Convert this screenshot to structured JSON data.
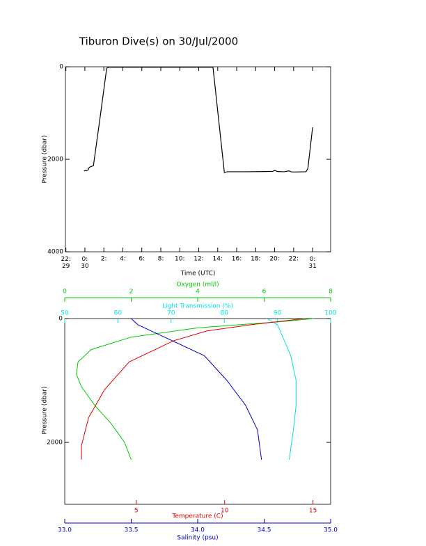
{
  "chart_data": [
    {
      "type": "line",
      "title": "Tiburon Dive(s) on 30/Jul/2000",
      "xlabel": "Time (UTC)",
      "ylabel": "Pressure (dbar)",
      "x": [
        -0.1,
        0.3,
        0.45,
        0.6,
        0.9,
        1.6,
        2.3,
        2.5,
        6,
        10,
        13.5,
        14.7,
        15,
        17,
        19,
        19.8,
        20,
        20.3,
        21,
        21.5,
        21.7,
        22,
        23.3,
        23.5,
        24.0
      ],
      "series": [
        {
          "color": "#000000",
          "values": [
            2250,
            2240,
            2180,
            2160,
            2140,
            1100,
            30,
            10,
            10,
            10,
            10,
            2285,
            2270,
            2270,
            2265,
            2260,
            2240,
            2265,
            2270,
            2250,
            2270,
            2275,
            2270,
            2200,
            1310
          ]
        }
      ],
      "xlim": [
        -2.05,
        25.9
      ],
      "xticks": [
        {
          "value": -2,
          "label": "22:\n29"
        },
        {
          "value": 0,
          "label": "0:\n30"
        },
        {
          "value": 2,
          "label": "2:"
        },
        {
          "value": 4,
          "label": "4:"
        },
        {
          "value": 6,
          "label": "6:"
        },
        {
          "value": 8,
          "label": "8:"
        },
        {
          "value": 10,
          "label": "10:"
        },
        {
          "value": 12,
          "label": "12:"
        },
        {
          "value": 14,
          "label": "14:"
        },
        {
          "value": 16,
          "label": "16:"
        },
        {
          "value": 18,
          "label": "18:"
        },
        {
          "value": 20,
          "label": "20:"
        },
        {
          "value": 22,
          "label": "22:"
        },
        {
          "value": 24,
          "label": "0:\n31"
        }
      ],
      "ylim": [
        0,
        4000
      ],
      "yticks": [
        0,
        2000,
        4000
      ],
      "y_inverted": true
    },
    {
      "type": "profile",
      "ylabel": "Pressure (dbar)",
      "ylim": [
        0,
        3000
      ],
      "yticks": [
        0,
        2000
      ],
      "y_inverted": true,
      "x_axes": [
        {
          "label": "Oxygen (ml/l)",
          "color": "#00cc00",
          "side": "top",
          "xlim": [
            0,
            8
          ],
          "xticks": [
            0,
            2,
            4,
            6,
            8
          ]
        },
        {
          "label": "Light Transmission (%)",
          "color": "#00e0e0",
          "side": "top",
          "xlim": [
            50,
            100
          ],
          "xticks": [
            50,
            60,
            70,
            80,
            90,
            100
          ]
        },
        {
          "label": "Temperature (C)",
          "color": "#e00000",
          "side": "bottom",
          "xlim": [
            0.95,
            16
          ],
          "xticks": [
            5,
            10,
            15
          ]
        },
        {
          "label": "Salinity (psu)",
          "color": "#0000c0",
          "side": "bottom",
          "xlim": [
            33,
            35
          ],
          "xticks": [
            {
              "value": 33,
              "label": "33.0"
            },
            {
              "value": 33.5,
              "label": "33.5"
            },
            {
              "value": 34,
              "label": "34.0"
            },
            {
              "value": 34.5,
              "label": "34.5"
            },
            {
              "value": 35,
              "label": "35.0"
            }
          ]
        }
      ],
      "series": [
        {
          "axis": 0,
          "color": "#00cc00",
          "pressure": [
            0,
            50,
            150,
            300,
            500,
            700,
            900,
            1100,
            1400,
            1700,
            2000,
            2280
          ],
          "values": [
            7.5,
            6.5,
            4.0,
            2.0,
            0.8,
            0.4,
            0.35,
            0.5,
            0.9,
            1.4,
            1.8,
            2.0
          ]
        },
        {
          "axis": 1,
          "color": "#00e0e0",
          "pressure": [
            0,
            100,
            300,
            600,
            1000,
            1400,
            1800,
            2280
          ],
          "values": [
            88,
            90,
            91,
            92.5,
            93.5,
            93.5,
            93,
            92.2
          ]
        },
        {
          "axis": 2,
          "color": "#e00000",
          "pressure": [
            0,
            100,
            200,
            360,
            700,
            1150,
            1600,
            2050,
            2280
          ],
          "values": [
            14.5,
            11.5,
            9.0,
            7.1,
            4.6,
            3.2,
            2.3,
            1.9,
            1.9
          ]
        },
        {
          "axis": 3,
          "color": "#0000c0",
          "pressure": [
            0,
            100,
            300,
            600,
            1000,
            1400,
            1800,
            2280
          ],
          "values": [
            33.5,
            33.55,
            33.75,
            34.05,
            34.22,
            34.36,
            34.45,
            34.48
          ]
        }
      ]
    }
  ]
}
